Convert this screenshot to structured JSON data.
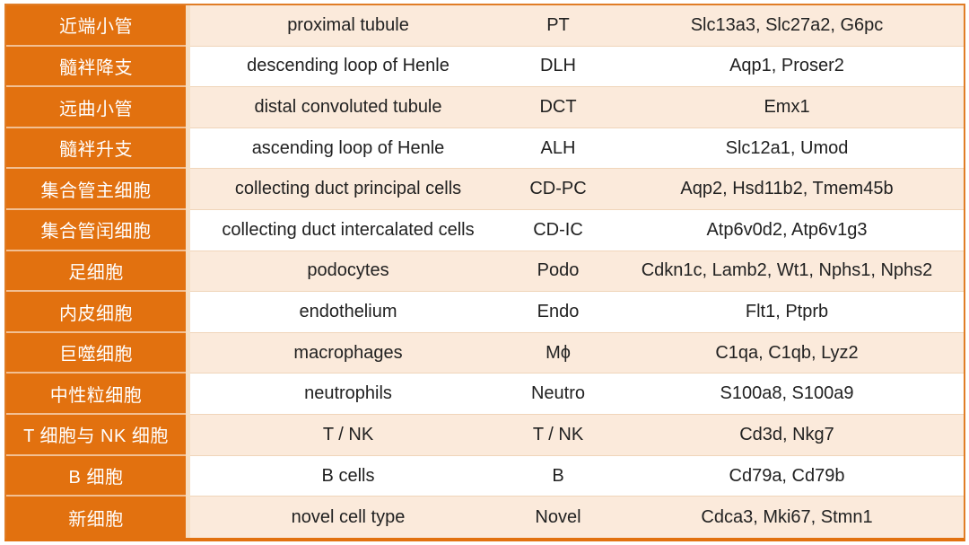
{
  "chart_data": {
    "type": "table",
    "description": "kidney cell type marker gene table",
    "column_keys": [
      "cn",
      "en",
      "abbr",
      "genes"
    ],
    "rows": [
      {
        "cn": "近端小管",
        "en": "proximal tubule",
        "abbr": "PT",
        "genes": "Slc13a3, Slc27a2, G6pc"
      },
      {
        "cn": "髓袢降支",
        "en": "descending loop of Henle",
        "abbr": "DLH",
        "genes": "Aqp1, Proser2"
      },
      {
        "cn": "远曲小管",
        "en": "distal convoluted tubule",
        "abbr": "DCT",
        "genes": "Emx1"
      },
      {
        "cn": "髓袢升支",
        "en": "ascending loop of Henle",
        "abbr": "ALH",
        "genes": "Slc12a1, Umod"
      },
      {
        "cn": "集合管主细胞",
        "en": "collecting duct principal cells",
        "abbr": "CD-PC",
        "genes": "Aqp2, Hsd11b2, Tmem45b"
      },
      {
        "cn": "集合管闰细胞",
        "en": "collecting duct intercalated cells",
        "abbr": "CD-IC",
        "genes": "Atp6v0d2, Atp6v1g3"
      },
      {
        "cn": "足细胞",
        "en": "podocytes",
        "abbr": "Podo",
        "genes": "Cdkn1c, Lamb2, Wt1, Nphs1, Nphs2"
      },
      {
        "cn": "内皮细胞",
        "en": "endothelium",
        "abbr": "Endo",
        "genes": "Flt1, Ptprb"
      },
      {
        "cn": "巨噬细胞",
        "en": "macrophages",
        "abbr": "Mϕ",
        "genes": "C1qa, C1qb, Lyz2"
      },
      {
        "cn": "中性粒细胞",
        "en": "neutrophils",
        "abbr": "Neutro",
        "genes": "S100a8, S100a9"
      },
      {
        "cn": "T 细胞与 NK 细胞",
        "en": "T / NK",
        "abbr": "T / NK",
        "genes": "Cd3d, Nkg7"
      },
      {
        "cn": "B 细胞",
        "en": "B cells",
        "abbr": "B",
        "genes": "Cd79a, Cd79b"
      },
      {
        "cn": "新细胞",
        "en": "novel cell type",
        "abbr": "Novel",
        "genes": "Cdca3, Mki67, Stmn1"
      }
    ],
    "layout_hints": {
      "header_row": false,
      "row_striping": "odd rows peach, even rows white",
      "label_column_background": "#E2710F"
    }
  },
  "style": {
    "orange": "#E2710F",
    "peach_row": "#FBEADB",
    "white_row": "#FFFFFF",
    "column_divider": "#F6DFC5",
    "outer_border": "#E07D26",
    "row_separator": "#F0D5BA",
    "label_text": "#FFFFFF",
    "content_text": "#212121"
  }
}
